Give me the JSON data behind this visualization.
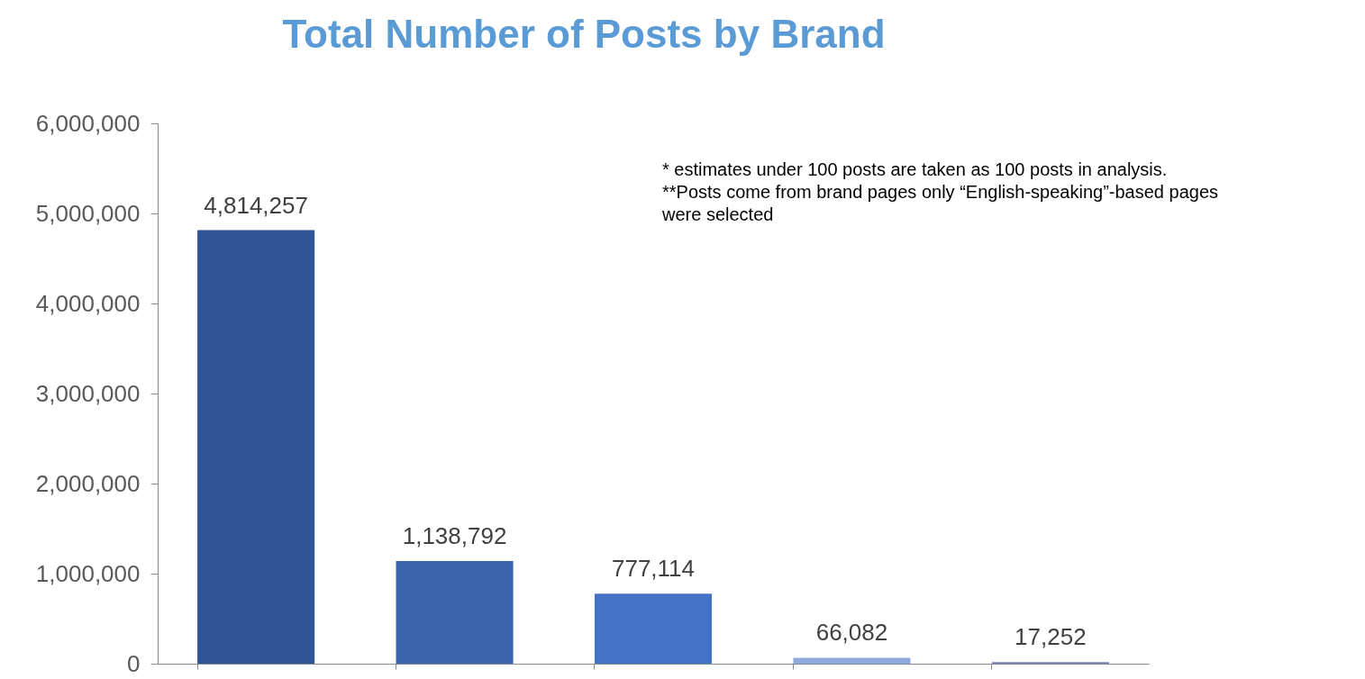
{
  "chart_data": {
    "type": "bar",
    "title": "Total Number of Posts by Brand",
    "categories": [
      null,
      null,
      null,
      null,
      null
    ],
    "values": [
      4814257,
      1138792,
      777114,
      66082,
      17252
    ],
    "value_labels": [
      "4,814,257",
      "1,138,792",
      "777,114",
      "66,082",
      "17,252"
    ],
    "colors": [
      "#2f5597",
      "#3a63ad",
      "#4472c4",
      "#8faadc",
      "#6f84b5"
    ],
    "ylim": [
      0,
      6000000
    ],
    "yticks": [
      {
        "value": 0,
        "label": "0"
      },
      {
        "value": 1000000,
        "label": "1,000,000"
      },
      {
        "value": 2000000,
        "label": "2,000,000"
      },
      {
        "value": 3000000,
        "label": "3,000,000"
      },
      {
        "value": 4000000,
        "label": "4,000,000"
      },
      {
        "value": 5000000,
        "label": "5,000,000"
      },
      {
        "value": 6000000,
        "label": "6,000,000"
      }
    ],
    "grid": false,
    "legend": false,
    "tick_labels": "y",
    "annotations": [
      "* estimates under 100 posts are taken as 100 posts in analysis.",
      "**Posts come from brand pages only “English-speaking”-based pages were selected"
    ]
  }
}
